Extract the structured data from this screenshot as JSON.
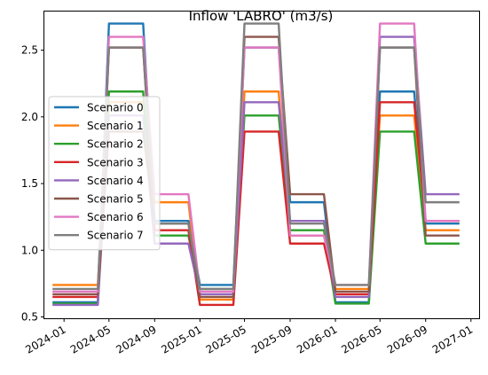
{
  "chart_data": {
    "type": "line",
    "title": "Inflow 'LABRO' (m3/s)",
    "xlabel": "",
    "ylabel": "",
    "x_dates": [
      "2023-12-01",
      "2024-01-01",
      "2024-02-01",
      "2024-03-01",
      "2024-04-01",
      "2024-05-01",
      "2024-06-01",
      "2024-07-01",
      "2024-08-01",
      "2024-09-01",
      "2024-10-01",
      "2024-11-01",
      "2024-12-01",
      "2025-01-01",
      "2025-02-01",
      "2025-03-01",
      "2025-04-01",
      "2025-05-01",
      "2025-06-01",
      "2025-07-01",
      "2025-08-01",
      "2025-09-01",
      "2025-10-01",
      "2025-11-01",
      "2025-12-01",
      "2026-01-01",
      "2026-02-01",
      "2026-03-01",
      "2026-04-01",
      "2026-05-01",
      "2026-06-01",
      "2026-07-01",
      "2026-08-01",
      "2026-09-01",
      "2026-10-01",
      "2026-11-01",
      "2026-12-01"
    ],
    "x_ticks": [
      "2024-01",
      "2024-05",
      "2024-09",
      "2025-01",
      "2025-05",
      "2025-09",
      "2026-01",
      "2026-05",
      "2026-09",
      "2027-01"
    ],
    "y_ticks": [
      0.5,
      1.0,
      1.5,
      2.0,
      2.5
    ],
    "ylim": [
      0.49,
      2.79
    ],
    "xlim": [
      "2023-11-09",
      "2027-01-23"
    ],
    "legend_position": "center-left",
    "grid": false,
    "series": [
      {
        "name": "Scenario 0",
        "color": "#1f77b4",
        "values": [
          0.61,
          0.61,
          0.61,
          0.61,
          0.61,
          2.7,
          2.7,
          2.7,
          2.7,
          1.22,
          1.22,
          1.22,
          1.22,
          0.74,
          0.74,
          0.74,
          0.74,
          2.52,
          2.52,
          2.52,
          2.52,
          1.36,
          1.36,
          1.36,
          1.36,
          0.61,
          0.61,
          0.61,
          0.61,
          2.19,
          2.19,
          2.19,
          2.19,
          1.2,
          1.2,
          1.2,
          1.2
        ]
      },
      {
        "name": "Scenario 1",
        "color": "#ff7f0e",
        "values": [
          0.74,
          0.74,
          0.74,
          0.74,
          0.74,
          2.11,
          2.11,
          2.11,
          2.11,
          1.36,
          1.36,
          1.36,
          1.36,
          0.63,
          0.63,
          0.63,
          0.63,
          2.19,
          2.19,
          2.19,
          2.19,
          1.11,
          1.11,
          1.11,
          1.11,
          0.71,
          0.71,
          0.71,
          0.71,
          2.01,
          2.01,
          2.01,
          2.01,
          1.15,
          1.15,
          1.15,
          1.15
        ]
      },
      {
        "name": "Scenario 2",
        "color": "#2ca02c",
        "values": [
          0.6,
          0.6,
          0.6,
          0.6,
          0.6,
          2.19,
          2.19,
          2.19,
          2.19,
          1.11,
          1.11,
          1.11,
          1.11,
          0.71,
          0.71,
          0.71,
          0.71,
          2.01,
          2.01,
          2.01,
          2.01,
          1.15,
          1.15,
          1.15,
          1.15,
          0.6,
          0.6,
          0.6,
          0.6,
          1.89,
          1.89,
          1.89,
          1.89,
          1.05,
          1.05,
          1.05,
          1.05
        ]
      },
      {
        "name": "Scenario 3",
        "color": "#d62728",
        "values": [
          0.65,
          0.65,
          0.65,
          0.65,
          0.65,
          2.52,
          2.52,
          2.52,
          2.52,
          1.15,
          1.15,
          1.15,
          1.15,
          0.59,
          0.59,
          0.59,
          0.59,
          1.89,
          1.89,
          1.89,
          1.89,
          1.05,
          1.05,
          1.05,
          1.05,
          0.67,
          0.67,
          0.67,
          0.67,
          2.11,
          2.11,
          2.11,
          2.11,
          1.22,
          1.22,
          1.22,
          1.22
        ]
      },
      {
        "name": "Scenario 4",
        "color": "#9467bd",
        "values": [
          0.59,
          0.59,
          0.59,
          0.59,
          0.59,
          2.01,
          2.01,
          2.01,
          2.01,
          1.05,
          1.05,
          1.05,
          1.05,
          0.67,
          0.67,
          0.67,
          0.67,
          2.11,
          2.11,
          2.11,
          2.11,
          1.22,
          1.22,
          1.22,
          1.22,
          0.65,
          0.65,
          0.65,
          0.65,
          2.6,
          2.6,
          2.6,
          2.6,
          1.42,
          1.42,
          1.42,
          1.42
        ]
      },
      {
        "name": "Scenario 5",
        "color": "#8c564b",
        "values": [
          0.67,
          0.67,
          0.67,
          0.67,
          0.67,
          1.89,
          1.89,
          1.89,
          1.89,
          1.2,
          1.2,
          1.2,
          1.2,
          0.65,
          0.65,
          0.65,
          0.65,
          2.6,
          2.6,
          2.6,
          2.6,
          1.42,
          1.42,
          1.42,
          1.42,
          0.69,
          0.69,
          0.69,
          0.69,
          2.52,
          2.52,
          2.52,
          2.52,
          1.11,
          1.11,
          1.11,
          1.11
        ]
      },
      {
        "name": "Scenario 6",
        "color": "#e377c2",
        "values": [
          0.69,
          0.69,
          0.69,
          0.69,
          0.69,
          2.6,
          2.6,
          2.6,
          2.6,
          1.42,
          1.42,
          1.42,
          1.42,
          0.69,
          0.69,
          0.69,
          0.69,
          2.52,
          2.52,
          2.52,
          2.52,
          1.11,
          1.11,
          1.11,
          1.11,
          0.74,
          0.74,
          0.74,
          0.74,
          2.7,
          2.7,
          2.7,
          2.7,
          1.22,
          1.22,
          1.22,
          1.22
        ]
      },
      {
        "name": "Scenario 7",
        "color": "#7f7f7f",
        "values": [
          0.71,
          0.71,
          0.71,
          0.71,
          0.71,
          2.52,
          2.52,
          2.52,
          2.52,
          1.2,
          1.2,
          1.2,
          1.2,
          0.71,
          0.71,
          0.71,
          0.71,
          2.7,
          2.7,
          2.7,
          2.7,
          1.2,
          1.2,
          1.2,
          1.2,
          0.74,
          0.74,
          0.74,
          0.74,
          2.52,
          2.52,
          2.52,
          2.52,
          1.36,
          1.36,
          1.36,
          1.36
        ]
      }
    ]
  }
}
